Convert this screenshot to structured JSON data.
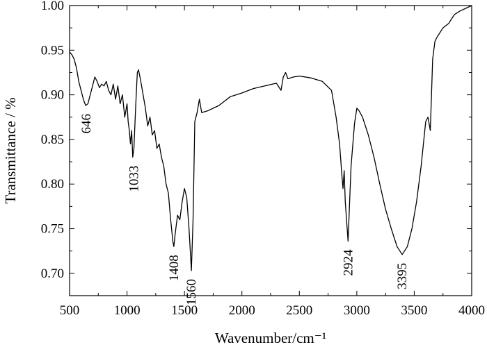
{
  "chart_data": {
    "type": "line",
    "title": "",
    "xlabel": "Wavenumber/cm⁻¹",
    "ylabel": "Transmittance / %",
    "xlim": [
      500,
      4000
    ],
    "ylim": [
      0.675,
      1.0
    ],
    "x_ticks": [
      500,
      1000,
      1500,
      2000,
      2500,
      3000,
      3500,
      4000
    ],
    "x_tick_labels": [
      "500",
      "1000",
      "1500",
      "2000",
      "2500",
      "3000",
      "3500",
      "4000"
    ],
    "y_ticks": [
      0.7,
      0.75,
      0.8,
      0.85,
      0.9,
      0.95,
      1.0
    ],
    "y_tick_labels": [
      "0.70",
      "0.75",
      "0.80",
      "0.85",
      "0.90",
      "0.95",
      "1.00"
    ],
    "grid": false,
    "line_color": "#000000",
    "annotations": [
      {
        "text": "646",
        "x": 646,
        "y": 0.888
      },
      {
        "text": "1033",
        "x": 1060,
        "y": 0.83
      },
      {
        "text": "1408",
        "x": 1408,
        "y": 0.73
      },
      {
        "text": "1560",
        "x": 1560,
        "y": 0.703
      },
      {
        "text": "2924",
        "x": 2924,
        "y": 0.736
      },
      {
        "text": "3395",
        "x": 3395,
        "y": 0.721
      }
    ],
    "series": [
      {
        "x": [
          500,
          520,
          540,
          560,
          580,
          600,
          620,
          640,
          660,
          680,
          700,
          720,
          740,
          760,
          780,
          800,
          820,
          840,
          860,
          880,
          900,
          920,
          940,
          960,
          980,
          1000,
          1010,
          1020,
          1030,
          1040,
          1050,
          1060,
          1070,
          1080,
          1090,
          1100,
          1120,
          1140,
          1160,
          1180,
          1200,
          1220,
          1240,
          1260,
          1280,
          1300,
          1320,
          1340,
          1360,
          1380,
          1400,
          1408,
          1420,
          1440,
          1460,
          1480,
          1500,
          1520,
          1540,
          1560,
          1575,
          1590,
          1610,
          1630,
          1650,
          1700,
          1800,
          1900,
          2000,
          2100,
          2200,
          2300,
          2340,
          2360,
          2380,
          2400,
          2450,
          2500,
          2600,
          2700,
          2780,
          2820,
          2850,
          2870,
          2880,
          2890,
          2900,
          2924,
          2950,
          2980,
          3000,
          3020,
          3050,
          3100,
          3150,
          3200,
          3250,
          3300,
          3350,
          3395,
          3440,
          3480,
          3520,
          3560,
          3600,
          3620,
          3640,
          3660,
          3680,
          3700,
          3750,
          3800,
          3850,
          3900,
          3950,
          4000
        ],
        "y": [
          0.948,
          0.945,
          0.94,
          0.93,
          0.915,
          0.905,
          0.895,
          0.888,
          0.89,
          0.9,
          0.91,
          0.92,
          0.915,
          0.908,
          0.912,
          0.91,
          0.915,
          0.905,
          0.9,
          0.912,
          0.895,
          0.91,
          0.89,
          0.9,
          0.875,
          0.89,
          0.87,
          0.86,
          0.845,
          0.86,
          0.83,
          0.84,
          0.87,
          0.9,
          0.925,
          0.928,
          0.915,
          0.9,
          0.885,
          0.865,
          0.875,
          0.855,
          0.86,
          0.84,
          0.845,
          0.83,
          0.82,
          0.8,
          0.79,
          0.76,
          0.735,
          0.73,
          0.745,
          0.765,
          0.76,
          0.78,
          0.795,
          0.785,
          0.75,
          0.703,
          0.76,
          0.87,
          0.88,
          0.895,
          0.88,
          0.882,
          0.888,
          0.898,
          0.902,
          0.907,
          0.91,
          0.913,
          0.905,
          0.92,
          0.925,
          0.918,
          0.92,
          0.921,
          0.919,
          0.915,
          0.905,
          0.875,
          0.845,
          0.81,
          0.795,
          0.815,
          0.78,
          0.736,
          0.82,
          0.868,
          0.885,
          0.882,
          0.875,
          0.855,
          0.83,
          0.8,
          0.772,
          0.75,
          0.73,
          0.721,
          0.73,
          0.75,
          0.78,
          0.82,
          0.87,
          0.875,
          0.86,
          0.94,
          0.96,
          0.965,
          0.975,
          0.98,
          0.99,
          0.994,
          0.997,
          1.0
        ]
      }
    ]
  }
}
